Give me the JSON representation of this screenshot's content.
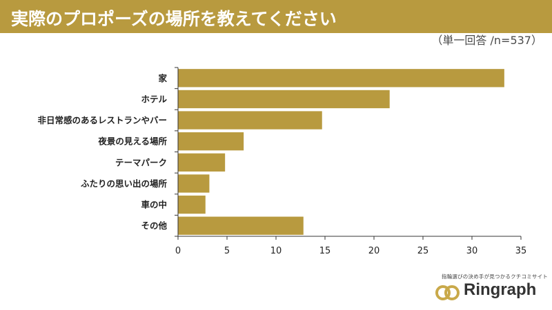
{
  "title": "実際のプロポーズの場所を教えてください",
  "subtitle": "（単一回答 /n=537）",
  "colors": {
    "header": "#b89a3f",
    "bar": "#b89a3f",
    "axis": "#333333"
  },
  "chart_data": {
    "type": "bar",
    "orientation": "horizontal",
    "categories": [
      "家",
      "ホテル",
      "非日常感のあるレストランやバー",
      "夜景の見える場所",
      "テーマパーク",
      "ふたりの思い出の場所",
      "車の中",
      "その他"
    ],
    "values": [
      33.3,
      21.6,
      14.7,
      6.7,
      4.8,
      3.2,
      2.8,
      12.8
    ],
    "xlim": [
      0,
      35
    ],
    "xticks": [
      0,
      5,
      10,
      15,
      20,
      25,
      30,
      35
    ],
    "grid": false
  },
  "logo": {
    "tagline": "指輪選びの決め手が見つかるクチコミサイト",
    "name": "Ringraph",
    "icon": "rings-icon"
  }
}
